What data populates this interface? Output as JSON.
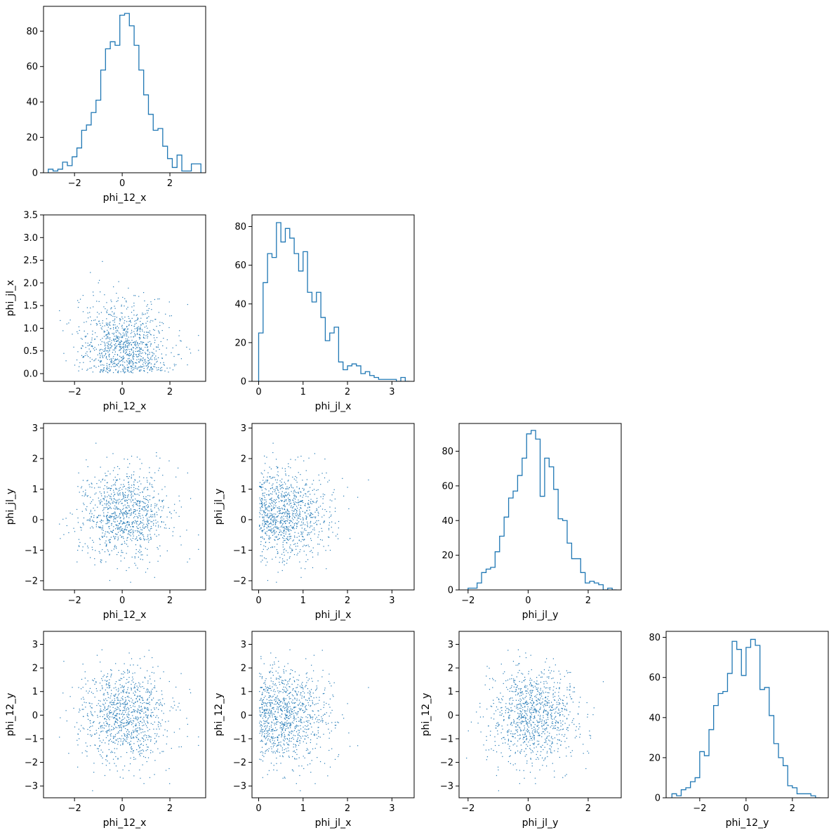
{
  "colors": {
    "series": "#1f77b4",
    "axes": "#000000",
    "background": "#ffffff"
  },
  "variables": [
    "phi_12_x",
    "phi_jl_x",
    "phi_jl_y",
    "phi_12_y"
  ],
  "scatter_point_count_approx": 1000,
  "chart_data": [
    {
      "type": "bar",
      "style": "step-histogram",
      "row": 0,
      "col": 0,
      "xlabel": "phi_12_x",
      "ylabel": "",
      "xlim": [
        -3.3,
        3.5
      ],
      "ylim": [
        0,
        94
      ],
      "xticks": [
        -2,
        0,
        2
      ],
      "yticks": [
        0,
        20,
        40,
        60,
        80
      ],
      "bin_edges": [
        -3.1,
        -2.9,
        -2.7,
        -2.5,
        -2.3,
        -2.1,
        -1.9,
        -1.7,
        -1.5,
        -1.3,
        -1.1,
        -0.9,
        -0.7,
        -0.5,
        -0.3,
        -0.1,
        0.1,
        0.3,
        0.5,
        0.7,
        0.9,
        1.1,
        1.3,
        1.5,
        1.7,
        1.9,
        2.1,
        2.3,
        2.5,
        2.7,
        2.9,
        3.1,
        3.3
      ],
      "values": [
        2,
        1,
        2,
        6,
        4,
        9,
        14,
        24,
        27,
        34,
        41,
        58,
        70,
        74,
        72,
        89,
        90,
        83,
        72,
        58,
        44,
        33,
        24,
        25,
        15,
        8,
        3,
        10,
        1,
        1,
        5,
        5
      ]
    },
    {
      "type": "scatter",
      "row": 1,
      "col": 0,
      "xlabel": "phi_12_x",
      "ylabel": "phi_jl_x",
      "xlim": [
        -3.3,
        3.5
      ],
      "ylim": [
        -0.17,
        3.5
      ],
      "xticks": [
        -2,
        0,
        2
      ],
      "yticks": [
        0.0,
        0.5,
        1.0,
        1.5,
        2.0,
        2.5,
        3.0,
        3.5
      ],
      "ytick_labels": [
        "0.0",
        "0.5",
        "1.0",
        "1.5",
        "2.0",
        "2.5",
        "3.0",
        "3.5"
      ],
      "x_var": "phi_12_x",
      "y_var": "phi_jl_x"
    },
    {
      "type": "bar",
      "style": "step-histogram",
      "row": 1,
      "col": 1,
      "xlabel": "phi_jl_x",
      "ylabel": "",
      "xlim": [
        -0.15,
        3.5
      ],
      "ylim": [
        0,
        86
      ],
      "xticks": [
        0,
        1,
        2,
        3
      ],
      "yticks": [
        0,
        20,
        40,
        60,
        80
      ],
      "bin_edges": [
        0.0,
        0.1,
        0.2,
        0.3,
        0.4,
        0.5,
        0.6,
        0.7,
        0.8,
        0.9,
        1.0,
        1.1,
        1.2,
        1.3,
        1.4,
        1.5,
        1.6,
        1.7,
        1.8,
        1.9,
        2.0,
        2.1,
        2.2,
        2.3,
        2.4,
        2.5,
        2.6,
        2.7,
        2.8,
        2.9,
        3.0,
        3.1,
        3.2,
        3.3,
        3.4
      ],
      "values": [
        25,
        51,
        66,
        64,
        82,
        72,
        79,
        74,
        66,
        57,
        67,
        46,
        41,
        46,
        33,
        21,
        25,
        28,
        10,
        6,
        8,
        9,
        8,
        4,
        5,
        3,
        2,
        1,
        1,
        1,
        1,
        0,
        2,
        0
      ]
    },
    {
      "type": "scatter",
      "row": 2,
      "col": 0,
      "xlabel": "phi_12_x",
      "ylabel": "phi_jl_y",
      "xlim": [
        -3.3,
        3.5
      ],
      "ylim": [
        -2.3,
        3.15
      ],
      "xticks": [
        -2,
        0,
        2
      ],
      "yticks": [
        -2,
        -1,
        0,
        1,
        2,
        3
      ],
      "x_var": "phi_12_x",
      "y_var": "phi_jl_y"
    },
    {
      "type": "scatter",
      "row": 2,
      "col": 1,
      "xlabel": "phi_jl_x",
      "ylabel": "phi_jl_y",
      "xlim": [
        -0.15,
        3.5
      ],
      "ylim": [
        -2.3,
        3.15
      ],
      "xticks": [
        0,
        1,
        2,
        3
      ],
      "yticks": [
        -2,
        -1,
        0,
        1,
        2,
        3
      ],
      "x_var": "phi_jl_x",
      "y_var": "phi_jl_y"
    },
    {
      "type": "bar",
      "style": "step-histogram",
      "row": 2,
      "col": 2,
      "xlabel": "phi_jl_y",
      "ylabel": "",
      "xlim": [
        -2.3,
        3.1
      ],
      "ylim": [
        0,
        96
      ],
      "xticks": [
        -2,
        0,
        2
      ],
      "yticks": [
        0,
        20,
        40,
        60,
        80
      ],
      "bin_edges": [
        -2.0,
        -1.85,
        -1.7,
        -1.55,
        -1.4,
        -1.25,
        -1.1,
        -0.95,
        -0.8,
        -0.65,
        -0.5,
        -0.35,
        -0.2,
        -0.05,
        0.1,
        0.25,
        0.4,
        0.55,
        0.7,
        0.85,
        1.0,
        1.15,
        1.3,
        1.45,
        1.6,
        1.75,
        1.9,
        2.05,
        2.2,
        2.35,
        2.5,
        2.65,
        2.8,
        2.95
      ],
      "values": [
        1,
        1,
        4,
        10,
        12,
        13,
        22,
        31,
        42,
        53,
        57,
        66,
        76,
        90,
        92,
        87,
        54,
        76,
        71,
        58,
        41,
        40,
        27,
        18,
        18,
        10,
        4,
        5,
        4,
        3,
        0,
        1,
        0
      ]
    },
    {
      "type": "scatter",
      "row": 3,
      "col": 0,
      "xlabel": "phi_12_x",
      "ylabel": "phi_12_y",
      "xlim": [
        -3.3,
        3.5
      ],
      "ylim": [
        -3.5,
        3.55
      ],
      "xticks": [
        -2,
        0,
        2
      ],
      "yticks": [
        -3,
        -2,
        -1,
        0,
        1,
        2,
        3
      ],
      "x_var": "phi_12_x",
      "y_var": "phi_12_y"
    },
    {
      "type": "scatter",
      "row": 3,
      "col": 1,
      "xlabel": "phi_jl_x",
      "ylabel": "phi_12_y",
      "xlim": [
        -0.15,
        3.5
      ],
      "ylim": [
        -3.5,
        3.55
      ],
      "xticks": [
        0,
        1,
        2,
        3
      ],
      "yticks": [
        -3,
        -2,
        -1,
        0,
        1,
        2,
        3
      ],
      "x_var": "phi_jl_x",
      "y_var": "phi_12_y"
    },
    {
      "type": "scatter",
      "row": 3,
      "col": 2,
      "xlabel": "phi_jl_y",
      "ylabel": "phi_12_y",
      "xlim": [
        -2.3,
        3.1
      ],
      "ylim": [
        -3.5,
        3.55
      ],
      "xticks": [
        -2,
        0,
        2
      ],
      "yticks": [
        -3,
        -2,
        -1,
        0,
        1,
        2,
        3
      ],
      "x_var": "phi_jl_y",
      "y_var": "phi_12_y"
    },
    {
      "type": "bar",
      "style": "step-histogram",
      "row": 3,
      "col": 3,
      "xlabel": "phi_12_y",
      "ylabel": "",
      "xlim": [
        -3.45,
        3.55
      ],
      "ylim": [
        0,
        83
      ],
      "xticks": [
        -2,
        0,
        2
      ],
      "yticks": [
        0,
        20,
        40,
        60,
        80
      ],
      "bin_edges": [
        -3.2,
        -3.0,
        -2.8,
        -2.6,
        -2.4,
        -2.2,
        -2.0,
        -1.8,
        -1.6,
        -1.4,
        -1.2,
        -1.0,
        -0.8,
        -0.6,
        -0.4,
        -0.2,
        0.0,
        0.2,
        0.4,
        0.6,
        0.8,
        1.0,
        1.2,
        1.4,
        1.6,
        1.8,
        2.0,
        2.2,
        2.4,
        2.6,
        2.8,
        3.0,
        3.2
      ],
      "values": [
        2,
        1,
        4,
        5,
        8,
        10,
        23,
        21,
        34,
        46,
        52,
        53,
        62,
        78,
        74,
        61,
        75,
        79,
        76,
        54,
        55,
        41,
        27,
        20,
        16,
        6,
        5,
        2,
        2,
        2,
        1,
        0
      ]
    }
  ]
}
